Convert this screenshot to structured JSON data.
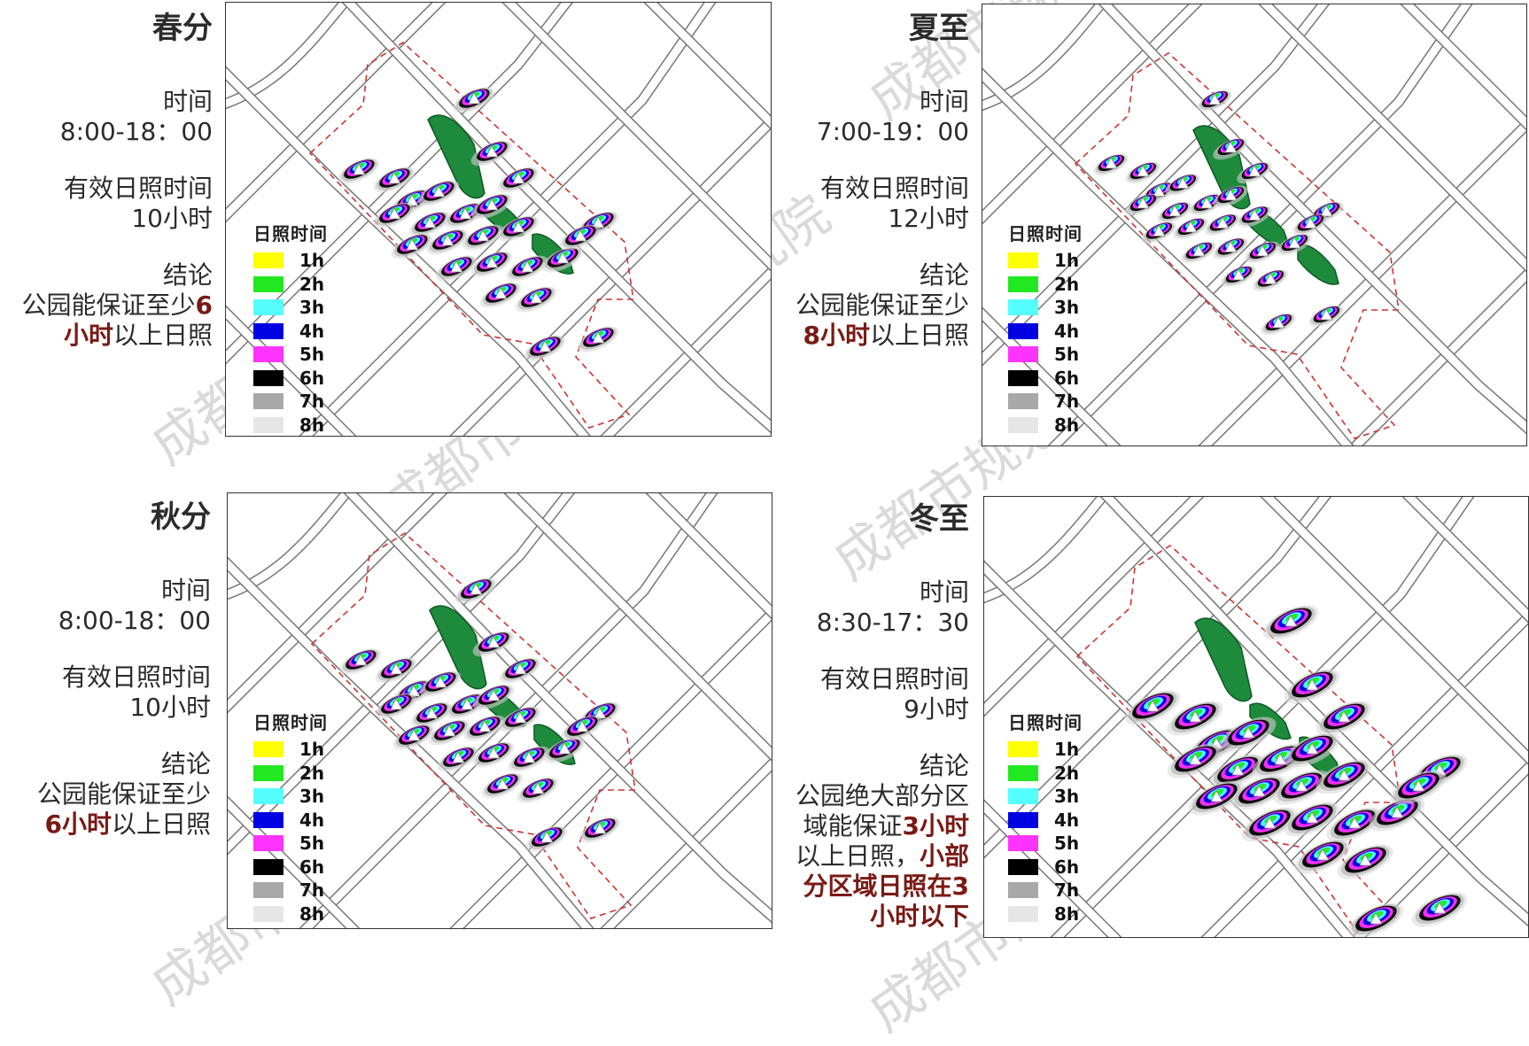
{
  "legend": {
    "title": "日照时间",
    "items": [
      {
        "label": "1h",
        "color": "#ffff00"
      },
      {
        "label": "2h",
        "color": "#22e822"
      },
      {
        "label": "3h",
        "color": "#55ffff"
      },
      {
        "label": "4h",
        "color": "#0000e0"
      },
      {
        "label": "5h",
        "color": "#ff33ff"
      },
      {
        "label": "6h",
        "color": "#000000"
      },
      {
        "label": "7h",
        "color": "#a8a8a8"
      },
      {
        "label": "8h",
        "color": "#e6e6e6"
      }
    ]
  },
  "panels": {
    "spring": {
      "season": "春分",
      "time_label": "时间",
      "time_range": "8:00-18：00",
      "effective_label": "有效日照时间",
      "effective_value": "10小时",
      "conclusion_label": "结论",
      "conclusion_1": "公园能保证至少",
      "conclusion_1_red": "6",
      "conclusion_2_red": "小时",
      "conclusion_2": "以上日照"
    },
    "summer": {
      "season": "夏至",
      "time_label": "时间",
      "time_range": "7:00-19：00",
      "effective_label": "有效日照时间",
      "effective_value": "12小时",
      "conclusion_label": "结论",
      "conclusion_1": "公园能保证至少",
      "conclusion_2_red": "8小时",
      "conclusion_2": "以上日照"
    },
    "autumn": {
      "season": "秋分",
      "time_label": "时间",
      "time_range": "8:00-18：00",
      "effective_label": "有效日照时间",
      "effective_value": "10小时",
      "conclusion_label": "结论",
      "conclusion_1": "公园能保证至少",
      "conclusion_2_red": "6小时",
      "conclusion_2": "以上日照"
    },
    "winter": {
      "season": "冬至",
      "time_label": "时间",
      "time_range": "8:30-17：30",
      "effective_label": "有效日照时间",
      "effective_value": "9小时",
      "conclusion_label": "结论",
      "conclusion_1": "公园绝大部分区",
      "conclusion_2a": "域能保证",
      "conclusion_2a_red": "3小时",
      "conclusion_3": "以上日照，",
      "conclusion_3_red": "小部",
      "conclusion_4_red": "分区域日照在3",
      "conclusion_5_red": "小时以下"
    }
  },
  "watermark": "成都市规划设计研究院"
}
